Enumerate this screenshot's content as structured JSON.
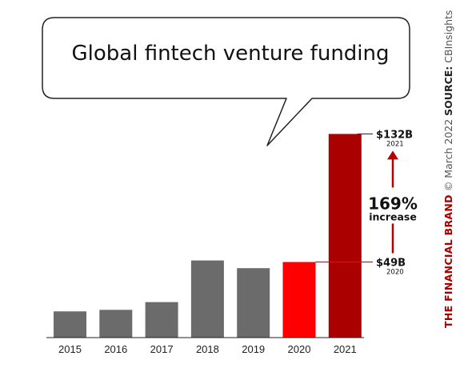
{
  "chart_data": {
    "type": "bar",
    "title": "Global fintech venture funding",
    "categories": [
      "2015",
      "2016",
      "2017",
      "2018",
      "2019",
      "2020",
      "2021"
    ],
    "values": [
      17,
      18,
      23,
      50,
      45,
      49,
      132
    ],
    "unit": "$B",
    "ylim": [
      0,
      140
    ],
    "grid": false,
    "bar_colors": [
      "#6b6b6b",
      "#6b6b6b",
      "#6b6b6b",
      "#6b6b6b",
      "#6b6b6b",
      "#ff0000",
      "#aa0000"
    ],
    "annotations": {
      "high": {
        "label": "$132B",
        "year": "2021"
      },
      "low": {
        "label": "$49B",
        "year": "2020"
      },
      "change": {
        "value": "169%",
        "text": "increase"
      }
    }
  },
  "credit": {
    "brand": "THE FINANCIAL BRAND",
    "copyright": " © March 2022 ",
    "source_label": "SOURCE:",
    "source": " CBInsights"
  },
  "colors": {
    "gray_bar": "#6b6b6b",
    "highlight_2020": "#ff0000",
    "highlight_2021": "#aa0000",
    "arrow": "#b30000"
  }
}
